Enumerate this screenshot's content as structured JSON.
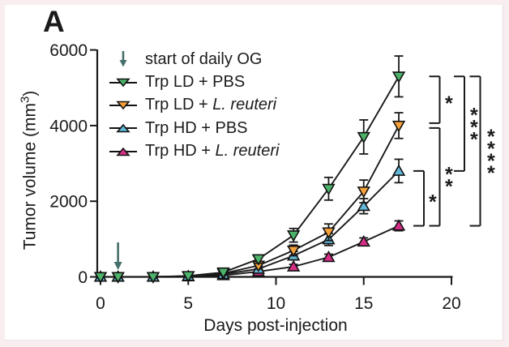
{
  "panel_label": "A",
  "frame": {
    "outer_background": "#f8edef",
    "canvas_background": "#ffffff"
  },
  "chart_data": {
    "type": "line",
    "title": "",
    "xlabel": "Days post-injection",
    "ylabel": {
      "pre": "Tumor volume (mm",
      "sup": "3",
      "post": ")"
    },
    "xlim": [
      0,
      20
    ],
    "ylim": [
      0,
      6000
    ],
    "xticks": [
      0,
      5,
      10,
      15,
      20
    ],
    "yticks": [
      0,
      2000,
      4000,
      6000
    ],
    "grid": false,
    "line_color": "#1a1a1a",
    "x": [
      0,
      1,
      3,
      5,
      7,
      9,
      11,
      13,
      15,
      17
    ],
    "series": [
      {
        "name": "Trp LD + PBS",
        "color": "#4db36a",
        "marker": "triangle-down",
        "values": [
          0,
          0,
          0,
          25,
          120,
          470,
          1100,
          2330,
          3700,
          5300
        ],
        "errors": [
          0,
          0,
          0,
          0,
          50,
          110,
          180,
          300,
          450,
          540
        ]
      },
      {
        "name": "Trp LD + L. reuteri",
        "color": "#f6a13a",
        "marker": "triangle-down",
        "values": [
          0,
          0,
          0,
          20,
          90,
          300,
          700,
          1180,
          2260,
          4000
        ],
        "errors": [
          0,
          0,
          0,
          0,
          40,
          90,
          140,
          220,
          300,
          340
        ]
      },
      {
        "name": "Trp HD + PBS",
        "color": "#63b8d9",
        "marker": "triangle-up",
        "values": [
          0,
          0,
          0,
          18,
          70,
          210,
          560,
          990,
          1870,
          2800
        ],
        "errors": [
          0,
          0,
          0,
          0,
          35,
          70,
          110,
          160,
          200,
          310
        ]
      },
      {
        "name": "Trp HD + L. reuteri",
        "color": "#d62e86",
        "marker": "triangle-up",
        "values": [
          0,
          0,
          0,
          12,
          40,
          140,
          270,
          520,
          930,
          1350
        ],
        "errors": [
          0,
          0,
          0,
          0,
          25,
          45,
          60,
          80,
          100,
          130
        ]
      }
    ],
    "annotation": {
      "arrow_day": 1,
      "arrow_color": "#456f6a"
    },
    "significance_brackets": [
      {
        "between": [
          "Trp HD + PBS",
          "Trp HD + L. reuteri"
        ],
        "stars": "*",
        "column": 0
      },
      {
        "between": [
          "Trp LD + PBS",
          "Trp LD + L. reuteri"
        ],
        "stars": "*",
        "column": 1
      },
      {
        "between": [
          "Trp LD + L. reuteri",
          "Trp HD + L. reuteri"
        ],
        "stars": "**",
        "column": 1
      },
      {
        "between": [
          "Trp LD + PBS",
          "Trp HD + PBS"
        ],
        "stars": "***",
        "column": 2
      },
      {
        "between": [
          "Trp LD + PBS",
          "Trp HD + L. reuteri"
        ],
        "stars": "****",
        "column": 3
      }
    ],
    "legend_position": "inside top-left"
  },
  "legend": {
    "arrow_label": "start of daily OG",
    "items": [
      {
        "series": "Trp LD + PBS",
        "parts": [
          {
            "t": "Trp LD + PBS",
            "italic": false
          }
        ]
      },
      {
        "series": "Trp LD + L. reuteri",
        "parts": [
          {
            "t": "Trp LD + ",
            "italic": false
          },
          {
            "t": "L. reuteri",
            "italic": true
          }
        ]
      },
      {
        "series": "Trp HD + PBS",
        "parts": [
          {
            "t": "Trp HD + PBS",
            "italic": false
          }
        ]
      },
      {
        "series": "Trp HD + L. reuteri",
        "parts": [
          {
            "t": "Trp HD + ",
            "italic": false
          },
          {
            "t": "L. reuteri",
            "italic": true
          }
        ]
      }
    ]
  }
}
